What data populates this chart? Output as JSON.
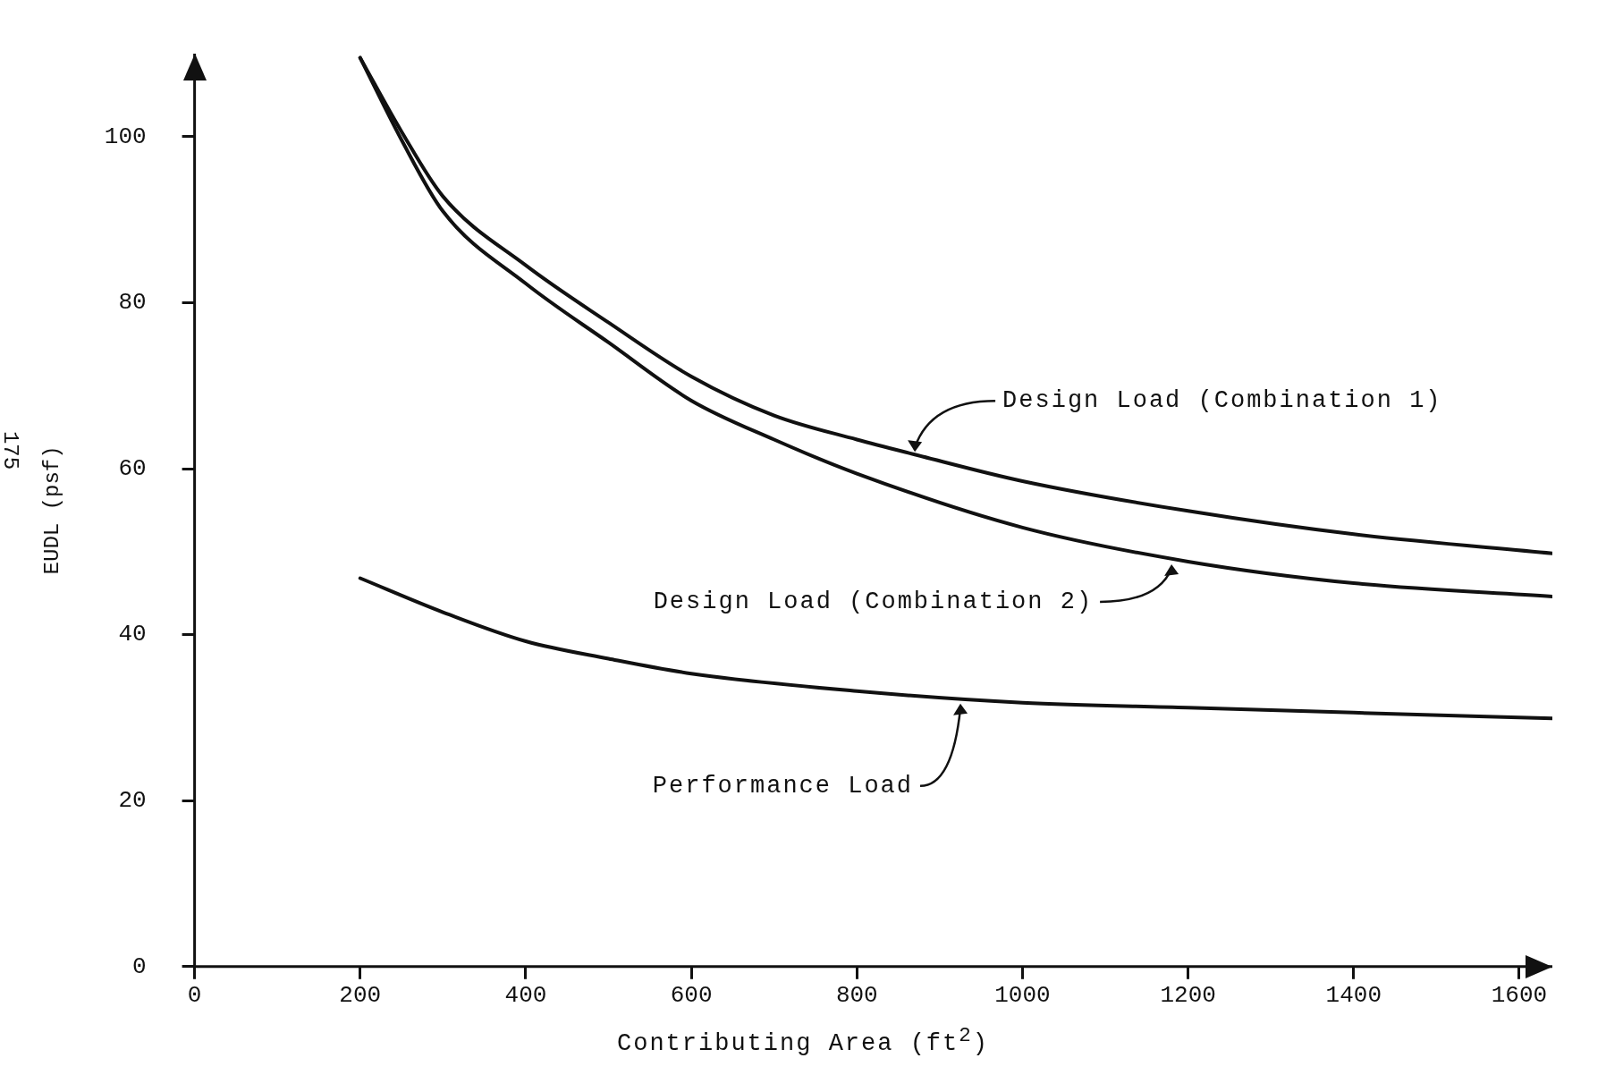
{
  "chart_data": {
    "type": "line",
    "xlabel": "Contributing Area (ft$^{2}$)",
    "ylabel": "EUDL (psf)",
    "xlim": [
      0,
      1640
    ],
    "xticks": [
      0,
      200,
      400,
      600,
      800,
      1000,
      1200,
      1400,
      1600
    ],
    "ylim": [
      0,
      110
    ],
    "yticks": [
      0,
      20,
      40,
      60,
      80,
      100
    ],
    "grid": false,
    "legend": false,
    "marker": "none",
    "line_style": "solid",
    "series": [
      {
        "color": "#111111",
        "x": [
          200,
          250,
          300,
          400,
          500,
          600,
          700,
          800,
          870,
          1000,
          1200,
          1400,
          1640
        ],
        "values": [
          109.5,
          100.6,
          92.8,
          84.5,
          77.6,
          71.1,
          66.4,
          63.5,
          61.7,
          58.5,
          54.9,
          52.1,
          49.8
        ]
      },
      {
        "color": "#111111",
        "x": [
          200,
          250,
          300,
          400,
          500,
          600,
          700,
          800,
          1000,
          1200,
          1400,
          1640
        ],
        "values": [
          109.5,
          99.6,
          91,
          82.3,
          75.2,
          68.2,
          63.5,
          59.4,
          52.9,
          48.8,
          46.2,
          44.6
        ]
      },
      {
        "color": "#111111",
        "x": [
          200,
          300,
          400,
          500,
          600,
          800,
          1000,
          1200,
          1400,
          1640
        ],
        "values": [
          46.8,
          42.7,
          39.2,
          37.1,
          35.3,
          33.2,
          31.8,
          31.2,
          30.6,
          29.9
        ]
      }
    ],
    "annotations": [
      {
        "text": "Design Load (Combination 1)",
        "x": 870,
        "y": 61.7
      },
      {
        "text": "Design Load (Combination 2)",
        "x": 1180,
        "y": 48.8
      },
      {
        "text": "Performance Load",
        "x": 925,
        "y": 32
      },
      "175"
    ]
  }
}
